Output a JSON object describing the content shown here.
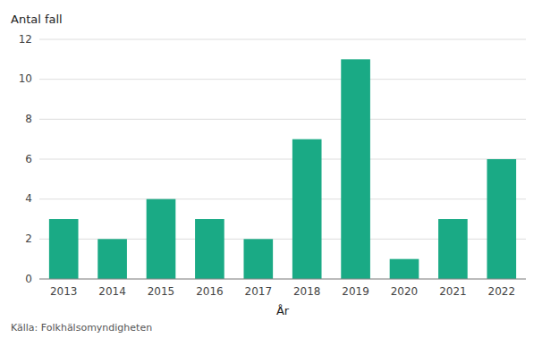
{
  "chart_data": {
    "type": "bar",
    "categories": [
      "2013",
      "2014",
      "2015",
      "2016",
      "2017",
      "2018",
      "2019",
      "2020",
      "2021",
      "2022"
    ],
    "values": [
      3,
      2,
      4,
      3,
      2,
      7,
      11,
      1,
      3,
      6
    ],
    "color": "#1aaa85",
    "ylabel": "Antal fall",
    "xlabel": "År",
    "annotations": [
      "Källa: Folkhälsomyndigheten"
    ],
    "ylim": [
      0,
      12
    ],
    "yticks": [
      0,
      2,
      4,
      6,
      8,
      10,
      12
    ],
    "grid": true
  }
}
